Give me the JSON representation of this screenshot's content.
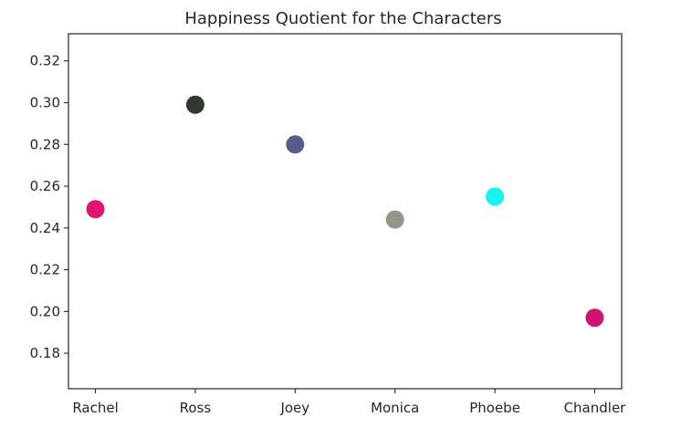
{
  "chart_data": {
    "type": "scatter",
    "title": "Happiness Quotient for the Characters",
    "xlabel": "",
    "ylabel": "",
    "categories": [
      "Rachel",
      "Ross",
      "Joey",
      "Monica",
      "Phoebe",
      "Chandler"
    ],
    "values": [
      0.249,
      0.299,
      0.28,
      0.244,
      0.255,
      0.197
    ],
    "point_colors": [
      "#e0156b",
      "#2f3a2f",
      "#5b5a8a",
      "#94948a",
      "#15f5f0",
      "#cd1470"
    ],
    "ylim": [
      0.163,
      0.333
    ],
    "yticks": [
      0.18,
      0.2,
      0.22,
      0.24,
      0.26,
      0.28,
      0.3,
      0.32
    ],
    "ytick_labels": [
      "0.18",
      "0.20",
      "0.22",
      "0.24",
      "0.26",
      "0.28",
      "0.30",
      "0.32"
    ],
    "grid": false,
    "legend": "none"
  }
}
